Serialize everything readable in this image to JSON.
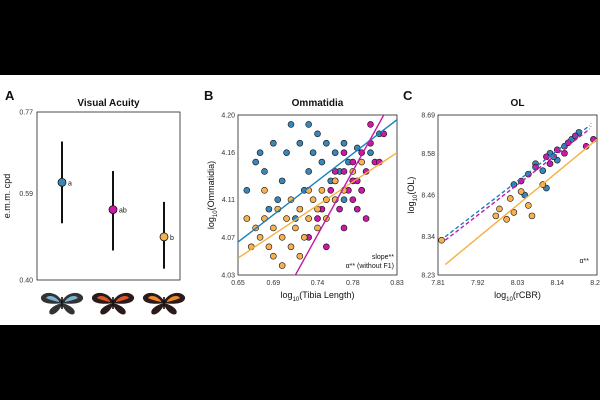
{
  "colors": {
    "blue": "#3b86b8",
    "magenta": "#c81aa6",
    "orange": "#f6b250",
    "blue_line": "#1b7fbf",
    "magenta_line": "#c019a8",
    "orange_line": "#f5b041"
  },
  "chart_data": [
    {
      "panel": "A",
      "type": "scatter",
      "title": "Visual Acuity",
      "ylabel": "e.m.m. cpd",
      "ylim": [
        0.4,
        0.77
      ],
      "yticks": [
        "0.77",
        "0.59",
        "0.40"
      ],
      "ytick_values": [
        0.77,
        0.59,
        0.4
      ],
      "points": [
        {
          "species": "blue",
          "mean": 0.615,
          "lo": 0.525,
          "hi": 0.705,
          "letter": "a"
        },
        {
          "species": "magenta",
          "mean": 0.555,
          "lo": 0.465,
          "hi": 0.64,
          "letter": "ab"
        },
        {
          "species": "orange",
          "mean": 0.495,
          "lo": 0.425,
          "hi": 0.572,
          "letter": "b"
        }
      ],
      "butterfly_icons": [
        "butterfly-icon-blue",
        "butterfly-icon-red",
        "butterfly-icon-orange"
      ]
    },
    {
      "panel": "B",
      "type": "scatter",
      "title": "Ommatidia",
      "xlabel_prefix": "log",
      "xlabel_sub": "10",
      "xlabel_rest": "(Tibia Length)",
      "ylabel_prefix": "log",
      "ylabel_sub": "10",
      "ylabel_rest": "(Ommatidia)",
      "xlim": [
        0.65,
        0.83
      ],
      "ylim": [
        4.03,
        4.2
      ],
      "xticks": [
        "0.65",
        "0.69",
        "0.74",
        "0.78",
        "0.83"
      ],
      "xtick_values": [
        0.65,
        0.69,
        0.74,
        0.78,
        0.83
      ],
      "yticks": [
        "4.20",
        "4.16",
        "4.11",
        "4.07",
        "4.03"
      ],
      "ytick_values": [
        4.2,
        4.16,
        4.11,
        4.07,
        4.03
      ],
      "annotation_1": "slope**",
      "annotation_2": "α** (without F1)",
      "lines": [
        {
          "color": "blue_line",
          "x": [
            0.65,
            0.83
          ],
          "y": [
            4.065,
            4.195
          ]
        },
        {
          "color": "orange_line",
          "x": [
            0.65,
            0.83
          ],
          "y": [
            4.048,
            4.16
          ]
        },
        {
          "color": "magenta_line",
          "x": [
            0.715,
            0.815
          ],
          "y": [
            4.03,
            4.2
          ]
        }
      ],
      "series": [
        {
          "color": "blue",
          "x": [
            0.66,
            0.67,
            0.675,
            0.68,
            0.69,
            0.7,
            0.705,
            0.71,
            0.72,
            0.73,
            0.735,
            0.74,
            0.745,
            0.75,
            0.755,
            0.76,
            0.765,
            0.77,
            0.775,
            0.78,
            0.79,
            0.8,
            0.81,
            0.685,
            0.695,
            0.715,
            0.725,
            0.73,
            0.77,
            0.785
          ],
          "y": [
            4.12,
            4.15,
            4.16,
            4.14,
            4.17,
            4.13,
            4.16,
            4.19,
            4.17,
            4.14,
            4.16,
            4.18,
            4.15,
            4.17,
            4.13,
            4.16,
            4.14,
            4.17,
            4.15,
            4.13,
            4.12,
            4.16,
            4.18,
            4.1,
            4.11,
            4.09,
            4.12,
            4.19,
            4.11,
            4.165
          ]
        },
        {
          "color": "magenta",
          "x": [
            0.73,
            0.74,
            0.745,
            0.75,
            0.755,
            0.76,
            0.765,
            0.77,
            0.775,
            0.78,
            0.785,
            0.79,
            0.795,
            0.8,
            0.805,
            0.77,
            0.76,
            0.78,
            0.79,
            0.8,
            0.815,
            0.75,
            0.77,
            0.785,
            0.795,
            0.81,
            0.76,
            0.78
          ],
          "y": [
            4.07,
            4.09,
            4.1,
            4.11,
            4.12,
            4.13,
            4.1,
            4.14,
            4.12,
            4.15,
            4.13,
            4.16,
            4.14,
            4.17,
            4.15,
            4.08,
            4.11,
            4.11,
            4.12,
            4.19,
            4.18,
            4.06,
            4.16,
            4.1,
            4.09,
            4.15,
            4.14,
            4.13
          ]
        },
        {
          "color": "orange",
          "x": [
            0.66,
            0.665,
            0.67,
            0.675,
            0.68,
            0.685,
            0.69,
            0.695,
            0.7,
            0.705,
            0.71,
            0.715,
            0.72,
            0.725,
            0.73,
            0.735,
            0.74,
            0.745,
            0.75,
            0.76,
            0.77,
            0.78,
            0.79,
            0.69,
            0.7,
            0.71,
            0.72,
            0.73,
            0.74,
            0.75,
            0.76,
            0.68
          ],
          "y": [
            4.09,
            4.06,
            4.08,
            4.07,
            4.09,
            4.06,
            4.08,
            4.1,
            4.07,
            4.09,
            4.11,
            4.08,
            4.1,
            4.07,
            4.09,
            4.11,
            4.1,
            4.12,
            4.11,
            4.13,
            4.12,
            4.14,
            4.15,
            4.05,
            4.04,
            4.06,
            4.05,
            4.12,
            4.08,
            4.09,
            4.11,
            4.12
          ]
        }
      ]
    },
    {
      "panel": "C",
      "type": "scatter",
      "title": "OL",
      "xlabel_prefix": "log",
      "xlabel_sub": "10",
      "xlabel_rest": "(rCBR)",
      "ylabel_prefix": "log",
      "ylabel_sub": "10",
      "ylabel_rest": "(OL)",
      "xlim": [
        7.81,
        8.25
      ],
      "ylim": [
        8.23,
        8.69
      ],
      "xticks": [
        "7.81",
        "7.92",
        "8.03",
        "8.14",
        "8.25"
      ],
      "xtick_values": [
        7.81,
        7.92,
        8.03,
        8.14,
        8.25
      ],
      "yticks": [
        "8.69",
        "8.58",
        "8.46",
        "8.34",
        "8.23"
      ],
      "ytick_values": [
        8.69,
        8.58,
        8.46,
        8.34,
        8.23
      ],
      "annotation_1": "α**",
      "dots_label": ":",
      "lines": [
        {
          "color": "orange_line",
          "x": [
            7.83,
            8.25
          ],
          "y": [
            8.26,
            8.62
          ],
          "dashed": false
        },
        {
          "color": "blue_line",
          "x": [
            7.83,
            8.23
          ],
          "y": [
            8.34,
            8.66
          ],
          "dashed": true
        },
        {
          "color": "magenta_line",
          "x": [
            7.83,
            8.23
          ],
          "y": [
            8.33,
            8.65
          ],
          "dashed": true
        }
      ],
      "series": [
        {
          "color": "blue",
          "x": [
            8.02,
            8.06,
            8.08,
            8.1,
            8.12,
            8.14,
            8.16,
            8.18,
            8.2,
            8.11,
            8.05,
            8.13
          ],
          "y": [
            8.49,
            8.52,
            8.55,
            8.53,
            8.58,
            8.56,
            8.6,
            8.62,
            8.64,
            8.48,
            8.46,
            8.57
          ]
        },
        {
          "color": "magenta",
          "x": [
            8.04,
            8.08,
            8.11,
            8.14,
            8.17,
            8.19,
            8.22,
            8.24,
            8.12,
            8.16
          ],
          "y": [
            8.5,
            8.54,
            8.57,
            8.59,
            8.61,
            8.63,
            8.6,
            8.62,
            8.55,
            8.58
          ]
        },
        {
          "color": "orange",
          "x": [
            7.82,
            7.97,
            7.98,
            8.0,
            8.02,
            8.04,
            8.06,
            8.1,
            8.01,
            8.07
          ],
          "y": [
            8.33,
            8.4,
            8.42,
            8.39,
            8.41,
            8.47,
            8.43,
            8.49,
            8.45,
            8.4
          ]
        }
      ]
    }
  ],
  "panel_labels": [
    "A",
    "B",
    "C"
  ]
}
